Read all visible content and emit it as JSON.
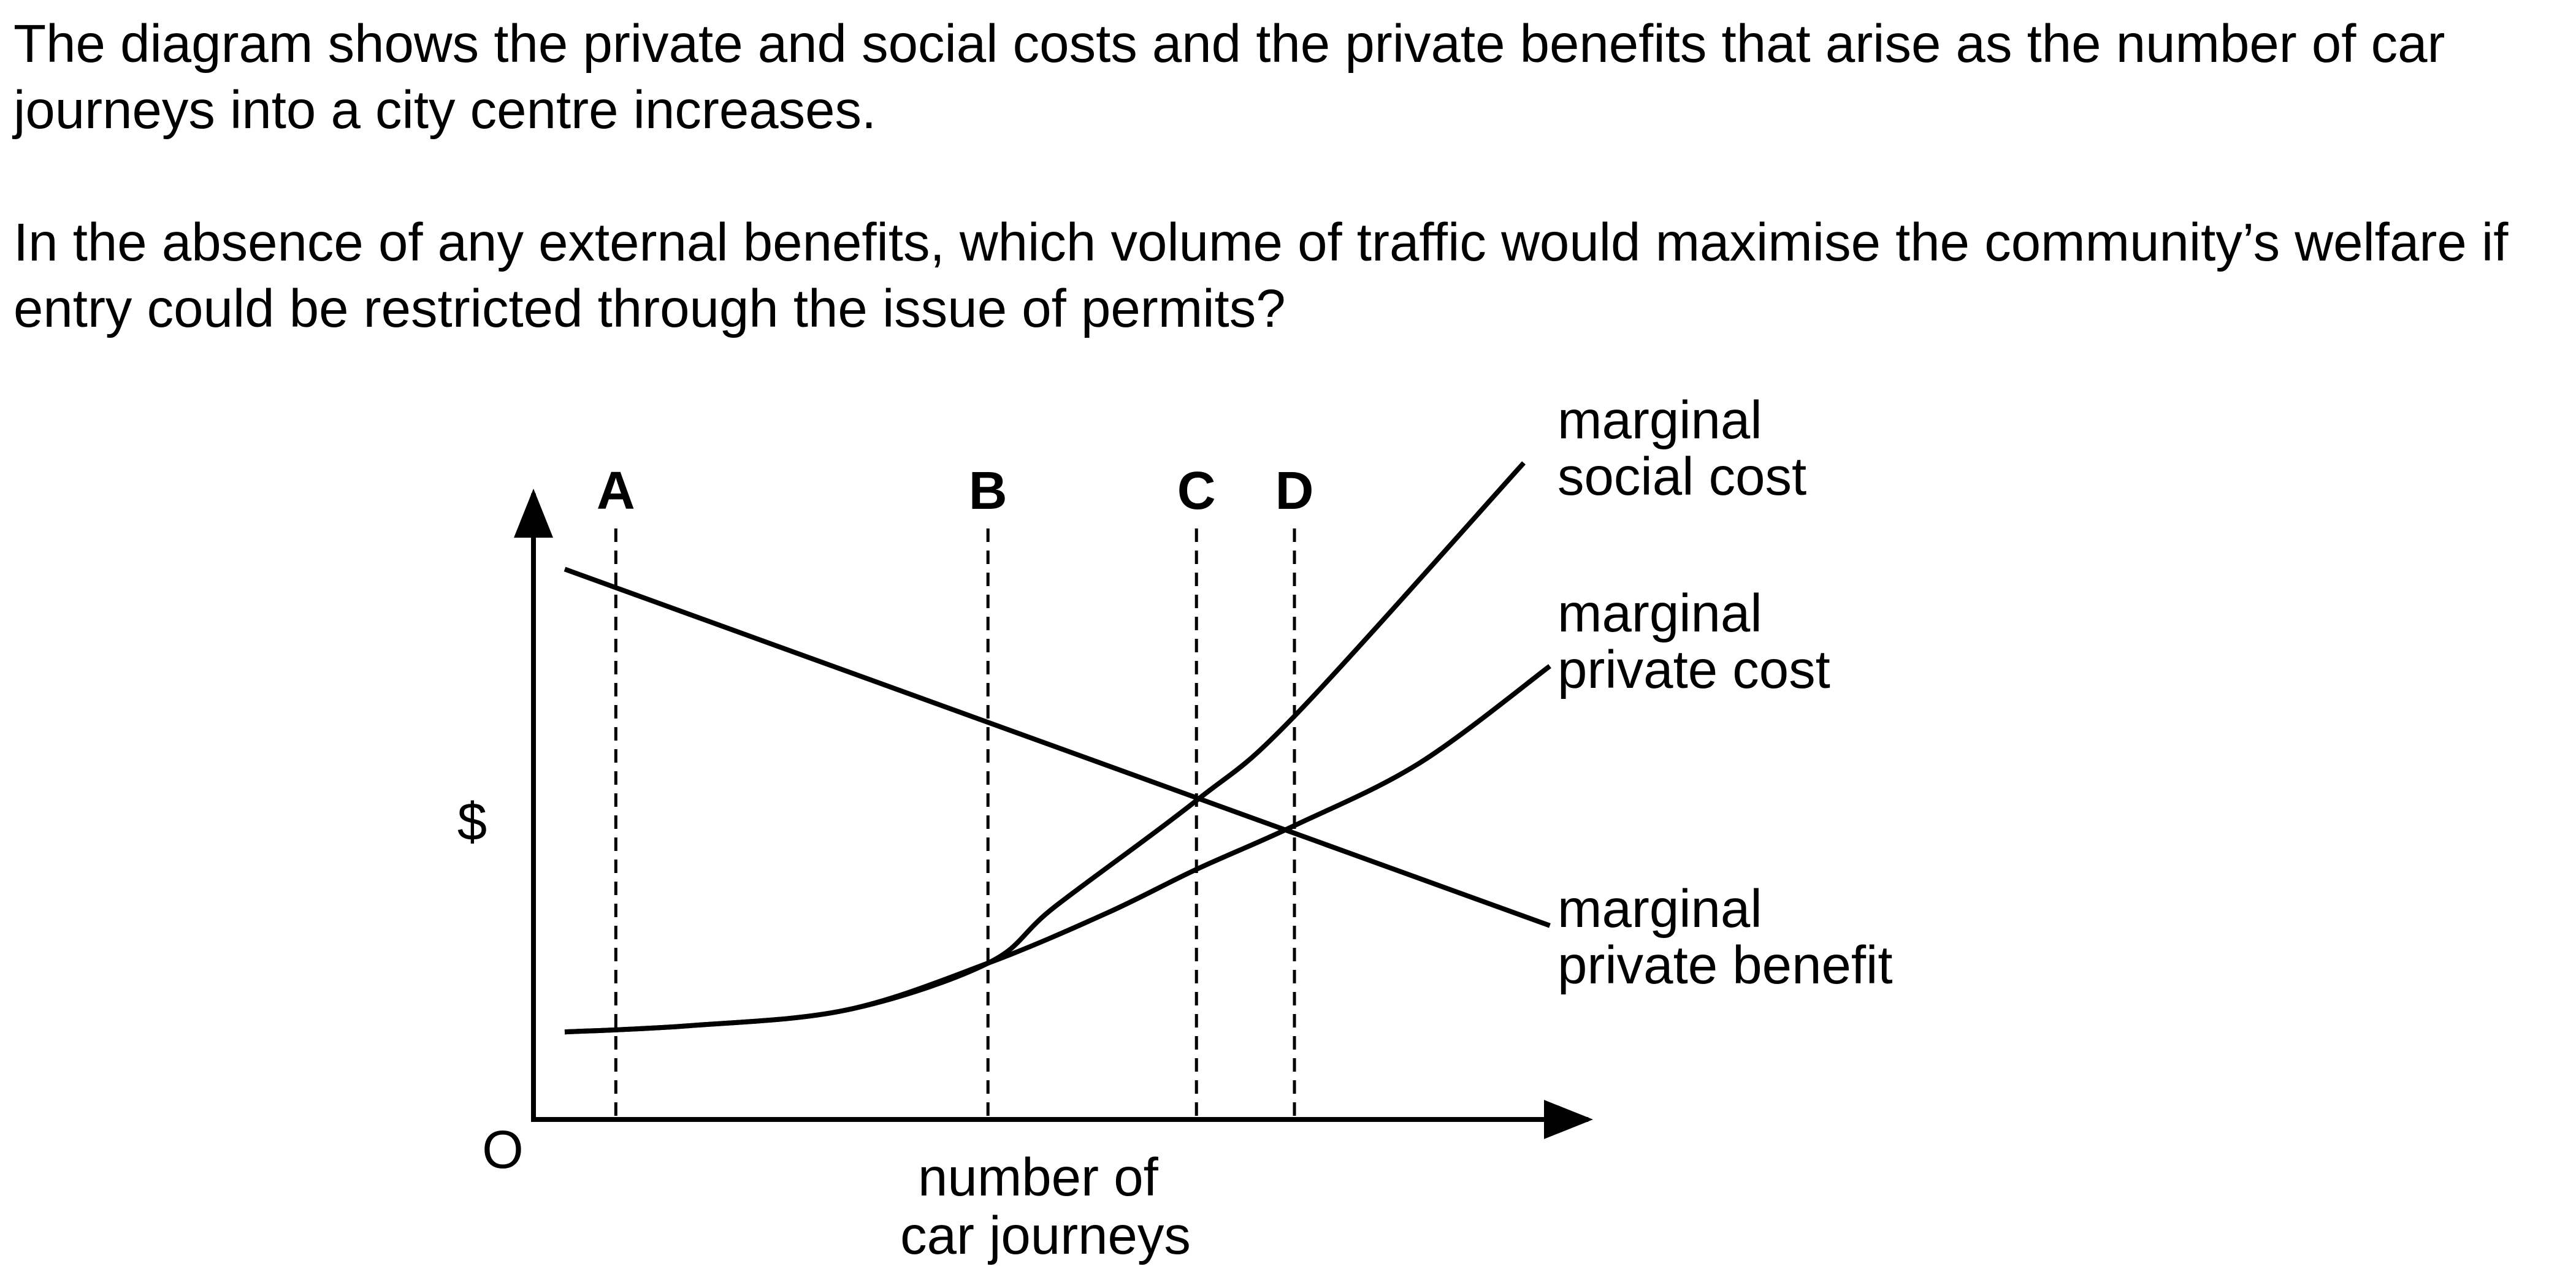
{
  "question": {
    "paragraph_1": "The diagram shows the private and social costs and the private benefits that arise as the number of car journeys into a city centre increases.",
    "paragraph_2": "In the absence of any external benefits, which volume of traffic would maximise the community’s welfare if entry could be restricted through the issue of permits?"
  },
  "chart_data": {
    "type": "line",
    "title": "",
    "xlabel": "number of car journeys",
    "xlabel_lines": [
      "number of",
      "car journeys"
    ],
    "ylabel": "$",
    "origin_label": "O",
    "x_axis_has_numbers": false,
    "y_axis_has_numbers": false,
    "xlim": [
      0,
      10
    ],
    "ylim": [
      0,
      10
    ],
    "grid": false,
    "series": [
      {
        "name": "marginal social cost",
        "label_lines": [
          "marginal",
          "social cost"
        ],
        "points": [
          [
            0.3,
            1.4
          ],
          [
            1.5,
            1.5
          ],
          [
            3,
            1.75
          ],
          [
            4.36,
            2.5
          ],
          [
            5.0,
            3.4
          ],
          [
            6.36,
            5.1
          ],
          [
            7.3,
            6.45
          ],
          [
            9.5,
            10.5
          ]
        ]
      },
      {
        "name": "marginal private cost",
        "label_lines": [
          "marginal",
          "private cost"
        ],
        "points": [
          [
            0.3,
            1.4
          ],
          [
            1.5,
            1.5
          ],
          [
            3,
            1.75
          ],
          [
            4.36,
            2.5
          ],
          [
            5.5,
            3.3
          ],
          [
            6.36,
            4.0
          ],
          [
            7.3,
            4.7
          ],
          [
            8.5,
            5.7
          ],
          [
            9.75,
            7.25
          ]
        ]
      },
      {
        "name": "marginal private benefit",
        "label_lines": [
          "marginal",
          "private benefit"
        ],
        "points": [
          [
            0.3,
            8.8
          ],
          [
            9.75,
            3.1
          ]
        ]
      }
    ],
    "markers": [
      {
        "label": "A",
        "x": 0.79
      },
      {
        "label": "B",
        "x": 4.36
      },
      {
        "label": "C",
        "x": 6.36
      },
      {
        "label": "D",
        "x": 7.3
      }
    ]
  }
}
